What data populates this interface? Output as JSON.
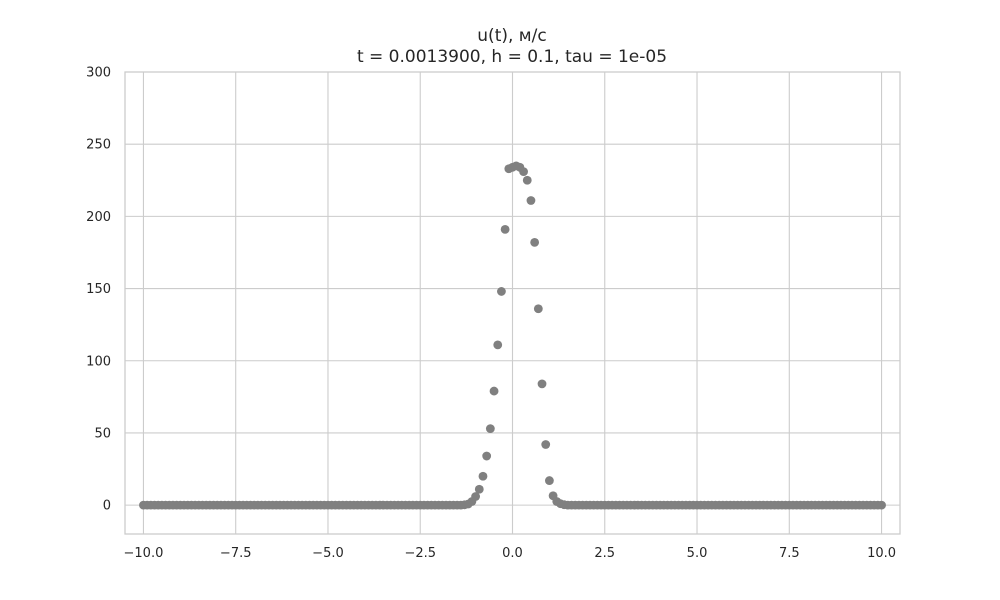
{
  "chart_data": {
    "type": "scatter",
    "title": "u(t), м/с",
    "subtitle": "t = 0.0013900, h = 0.1, tau = 1e-05",
    "xlabel": "",
    "ylabel": "",
    "xlim": [
      -10.5,
      10.5
    ],
    "ylim": [
      -20,
      300
    ],
    "xticks": [
      -10.0,
      -7.5,
      -5.0,
      -2.5,
      0.0,
      2.5,
      5.0,
      7.5,
      10.0
    ],
    "xtick_labels": [
      "−10.0",
      "−7.5",
      "−5.0",
      "−2.5",
      "0.0",
      "2.5",
      "5.0",
      "7.5",
      "10.0"
    ],
    "yticks": [
      0,
      50,
      100,
      150,
      200,
      250,
      300
    ],
    "ytick_labels": [
      "0",
      "50",
      "100",
      "150",
      "200",
      "250",
      "300"
    ],
    "grid": true,
    "marker_color": "#808080",
    "series": [
      {
        "x_start": -10.0,
        "x_step": 0.1,
        "x_count": 201,
        "points": [
          [
            -1.3,
            0.2
          ],
          [
            -1.2,
            0.8
          ],
          [
            -1.1,
            2.5
          ],
          [
            -1.0,
            6
          ],
          [
            -0.9,
            11
          ],
          [
            -0.8,
            20
          ],
          [
            -0.7,
            34
          ],
          [
            -0.6,
            53
          ],
          [
            -0.5,
            79
          ],
          [
            -0.4,
            111
          ],
          [
            -0.3,
            148
          ],
          [
            -0.2,
            191
          ],
          [
            -0.1,
            233
          ],
          [
            0.0,
            234
          ],
          [
            0.1,
            235
          ],
          [
            0.2,
            234
          ],
          [
            0.3,
            231
          ],
          [
            0.4,
            225
          ],
          [
            0.5,
            211
          ],
          [
            0.6,
            182
          ],
          [
            0.7,
            136
          ],
          [
            0.8,
            84
          ],
          [
            0.9,
            42
          ],
          [
            1.0,
            17
          ],
          [
            1.1,
            6.5
          ],
          [
            1.2,
            2.5
          ],
          [
            1.3,
            1
          ],
          [
            1.4,
            0.3
          ]
        ],
        "default_y": 0
      }
    ]
  }
}
